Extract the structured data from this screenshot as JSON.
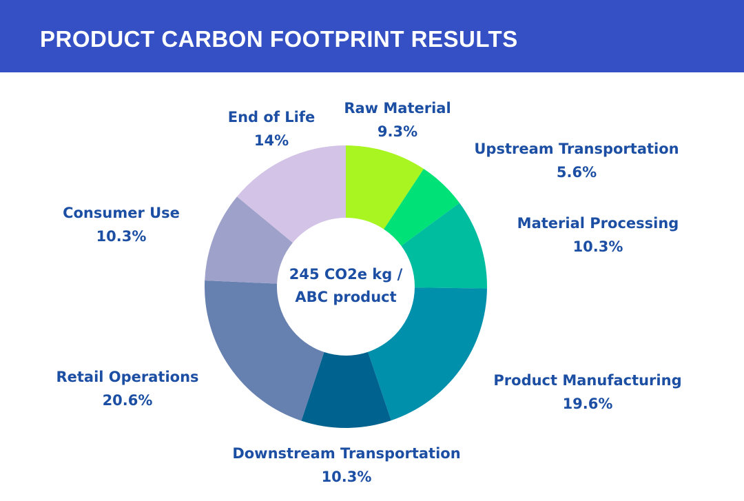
{
  "header": {
    "title": "PRODUCT CARBON FOOTPRINT RESULTS"
  },
  "chart_data": {
    "type": "pie",
    "variant": "donut",
    "title": "PRODUCT CARBON FOOTPRINT RESULTS",
    "center_label": [
      "245 CO2e kg /",
      "ABC product"
    ],
    "slices": [
      {
        "label": "Raw Material",
        "value": 9.3,
        "value_label": "9.3%",
        "color": "#a8f522"
      },
      {
        "label": "Upstream Transportation",
        "value": 5.6,
        "value_label": "5.6%",
        "color": "#00e177"
      },
      {
        "label": "Material Processing",
        "value": 10.3,
        "value_label": "10.3%",
        "color": "#00bd9f"
      },
      {
        "label": "Product Manufacturing",
        "value": 19.6,
        "value_label": "19.6%",
        "color": "#0090ac"
      },
      {
        "label": "Downstream Transportation",
        "value": 10.3,
        "value_label": "10.3%",
        "color": "#00628e"
      },
      {
        "label": "Retail Operations",
        "value": 20.6,
        "value_label": "20.6%",
        "color": "#6680b0"
      },
      {
        "label": "Consumer Use",
        "value": 10.3,
        "value_label": "10.3%",
        "color": "#9ea1c9"
      },
      {
        "label": "End of Life",
        "value": 14,
        "value_label": "14%",
        "color": "#d3c3e6"
      }
    ]
  }
}
